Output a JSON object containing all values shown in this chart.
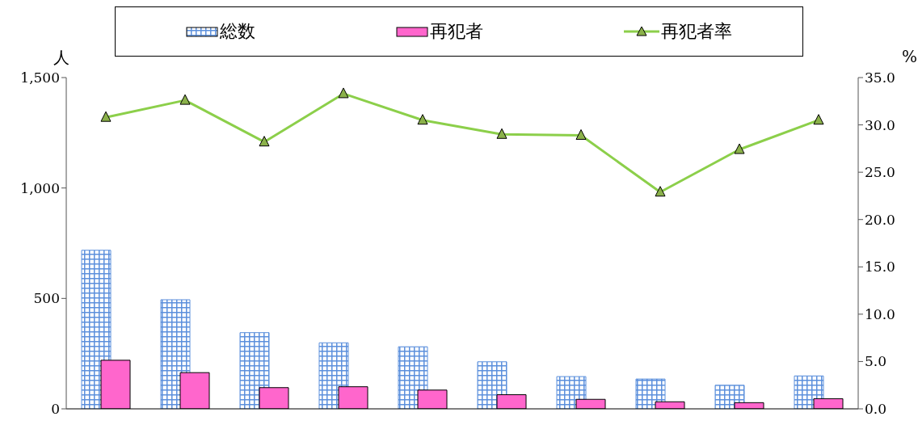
{
  "chart_data": {
    "type": "bar",
    "ylabel": "人",
    "y2label": "%",
    "categories": [
      null,
      null,
      null,
      null,
      null,
      null,
      null,
      null,
      null,
      null
    ],
    "series": [
      {
        "name": "総数",
        "color": "#5b8fdc",
        "values": [
          718,
          494,
          345,
          299,
          281,
          213,
          146,
          135,
          107,
          149
        ]
      },
      {
        "name": "再犯者",
        "color": "#ff66cc",
        "values": [
          220,
          164,
          96,
          100,
          85,
          64,
          43,
          32,
          28,
          46
        ]
      },
      {
        "name": "再犯者率",
        "type": "line",
        "axis": "y2",
        "color": "#8ccf4a",
        "marker": "triangle",
        "values": [
          30.8,
          32.6,
          28.2,
          33.3,
          30.5,
          29.0,
          28.9,
          22.9,
          27.4,
          30.5
        ]
      }
    ],
    "ylim": [
      0,
      1500
    ],
    "yticks": [
      0,
      {
        "value": 500,
        "label": "500"
      },
      {
        "value": 1000,
        "label": "1,000"
      },
      {
        "value": 1500,
        "label": "1,500"
      }
    ],
    "y2lim": [
      0,
      35
    ],
    "y2ticks": [
      {
        "value": 0,
        "label": "0.0"
      },
      {
        "value": 5,
        "label": "5.0"
      },
      {
        "value": 10,
        "label": "10.0"
      },
      {
        "value": 15,
        "label": "15.0"
      },
      {
        "value": 20,
        "label": "20.0"
      },
      {
        "value": 25,
        "label": "25.0"
      },
      {
        "value": 30,
        "label": "30.0"
      },
      {
        "value": 35,
        "label": "35.0"
      }
    ],
    "legend": "top",
    "grid": false
  }
}
